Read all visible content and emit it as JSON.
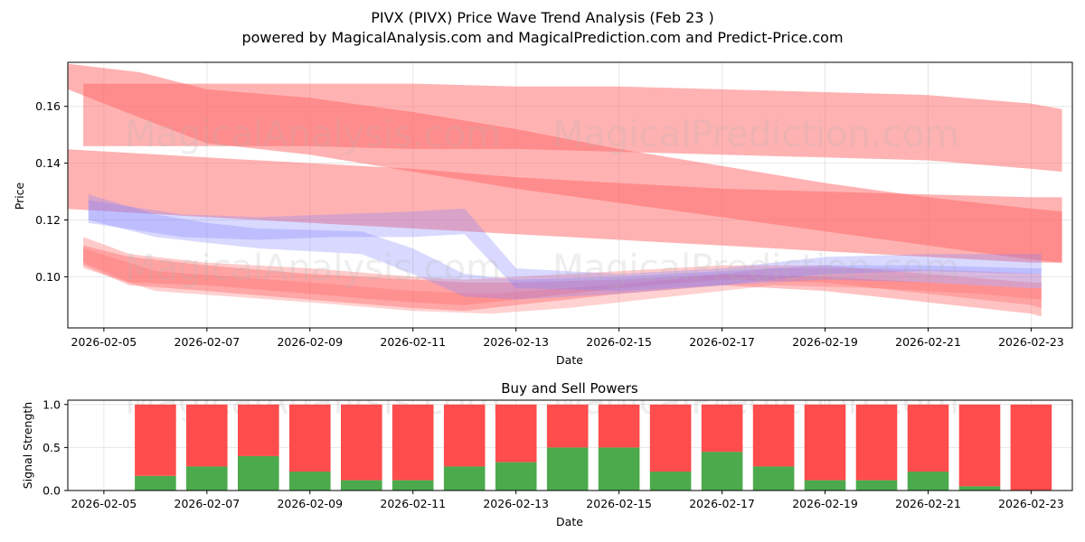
{
  "title": "PIVX (PIVX) Price Wave Trend Analysis (Feb 23 )",
  "subtitle": "powered by MagicalAnalysis.com and MagicalPrediction.com and Predict-Price.com",
  "watermarks": [
    "MagicalAnalysis.com",
    "MagicalPrediction.com"
  ],
  "chart_data": [
    {
      "type": "area",
      "title": "",
      "xlabel": "Date",
      "ylabel": "Price",
      "xlim": [
        "2026-02-04.3",
        "2026-02-23.8"
      ],
      "ylim": [
        0.082,
        0.1755
      ],
      "x_ticks": [
        "2026-02-05",
        "2026-02-07",
        "2026-02-09",
        "2026-02-11",
        "2026-02-13",
        "2026-02-15",
        "2026-02-17",
        "2026-02-19",
        "2026-02-21",
        "2026-02-23"
      ],
      "y_ticks": [
        0.1,
        0.12,
        0.14,
        0.16
      ],
      "y_tick_labels": [
        "0.10",
        "0.12",
        "0.14",
        "0.16"
      ],
      "grid": true,
      "colors": {
        "red_band": "#ff6666",
        "blue_band": "#8080ff"
      },
      "series": [
        {
          "name": "red-wave-1",
          "color": "red",
          "opacity": 0.5,
          "x": [
            4.3,
            5.7,
            7.0,
            9.0,
            11.0,
            13.0,
            15.0,
            17.0,
            19.0,
            21.0,
            23.0,
            23.6
          ],
          "upper": [
            0.175,
            0.172,
            0.166,
            0.163,
            0.158,
            0.152,
            0.145,
            0.139,
            0.133,
            0.128,
            0.124,
            0.123
          ],
          "lower": [
            0.166,
            0.156,
            0.147,
            0.143,
            0.137,
            0.131,
            0.126,
            0.121,
            0.116,
            0.111,
            0.106,
            0.105
          ]
        },
        {
          "name": "red-wave-2",
          "color": "red",
          "opacity": 0.5,
          "x": [
            4.6,
            7.0,
            9.0,
            11.0,
            13.0,
            15.0,
            17.0,
            19.0,
            21.0,
            23.0,
            23.6
          ],
          "upper": [
            0.168,
            0.168,
            0.168,
            0.168,
            0.167,
            0.167,
            0.166,
            0.165,
            0.164,
            0.161,
            0.159
          ],
          "lower": [
            0.146,
            0.146,
            0.146,
            0.145,
            0.145,
            0.144,
            0.143,
            0.142,
            0.141,
            0.138,
            0.137
          ]
        },
        {
          "name": "red-wave-3",
          "color": "red",
          "opacity": 0.5,
          "x": [
            4.2,
            7.0,
            9.0,
            11.0,
            13.0,
            15.0,
            17.0,
            19.0,
            21.0,
            23.0,
            23.6
          ],
          "upper": [
            0.145,
            0.142,
            0.14,
            0.138,
            0.135,
            0.133,
            0.131,
            0.13,
            0.129,
            0.128,
            0.128
          ],
          "lower": [
            0.124,
            0.121,
            0.119,
            0.117,
            0.115,
            0.113,
            0.111,
            0.109,
            0.107,
            0.105,
            0.105
          ]
        },
        {
          "name": "red-wave-4",
          "color": "red",
          "opacity": 0.4,
          "x": [
            4.6,
            5.5,
            7.0,
            9.0,
            11.0,
            12.0,
            13.0,
            15.0,
            17.0,
            19.0,
            21.0,
            23.0,
            23.2
          ],
          "upper": [
            0.111,
            0.107,
            0.104,
            0.101,
            0.099,
            0.098,
            0.098,
            0.099,
            0.101,
            0.1,
            0.098,
            0.096,
            0.096
          ],
          "lower": [
            0.104,
            0.097,
            0.095,
            0.092,
            0.089,
            0.088,
            0.09,
            0.094,
            0.097,
            0.095,
            0.091,
            0.087,
            0.086
          ]
        },
        {
          "name": "red-wave-5",
          "color": "red",
          "opacity": 0.35,
          "x": [
            4.6,
            5.5,
            7.0,
            9.0,
            11.0,
            12.0,
            13.0,
            15.0,
            17.0,
            19.0,
            21.0,
            23.0,
            23.2
          ],
          "upper": [
            0.114,
            0.108,
            0.105,
            0.103,
            0.1,
            0.099,
            0.1,
            0.102,
            0.104,
            0.104,
            0.101,
            0.098,
            0.098
          ],
          "lower": [
            0.105,
            0.098,
            0.097,
            0.094,
            0.091,
            0.09,
            0.092,
            0.096,
            0.099,
            0.098,
            0.094,
            0.09,
            0.089
          ]
        },
        {
          "name": "red-wave-6",
          "color": "red",
          "opacity": 0.3,
          "x": [
            4.6,
            6.0,
            7.5,
            9.0,
            11.0,
            12.5,
            14.0,
            16.0,
            18.0,
            20.0,
            22.0,
            23.2
          ],
          "upper": [
            0.11,
            0.102,
            0.1,
            0.098,
            0.095,
            0.094,
            0.096,
            0.099,
            0.103,
            0.103,
            0.102,
            0.101
          ],
          "lower": [
            0.103,
            0.095,
            0.093,
            0.091,
            0.088,
            0.087,
            0.089,
            0.093,
            0.097,
            0.096,
            0.094,
            0.092
          ]
        },
        {
          "name": "blue-wave-1",
          "color": "blue",
          "opacity": 0.3,
          "x": [
            4.7,
            6.0,
            7.0,
            8.0,
            10.0,
            11.0,
            12.0,
            13.0,
            15.0,
            17.0,
            19.0,
            21.0,
            23.0,
            23.2
          ],
          "upper": [
            0.129,
            0.122,
            0.119,
            0.117,
            0.116,
            0.11,
            0.101,
            0.099,
            0.1,
            0.102,
            0.104,
            0.104,
            0.103,
            0.103
          ],
          "lower": [
            0.12,
            0.114,
            0.112,
            0.11,
            0.108,
            0.101,
            0.093,
            0.092,
            0.094,
            0.097,
            0.099,
            0.098,
            0.096,
            0.096
          ]
        },
        {
          "name": "blue-wave-2",
          "color": "blue",
          "opacity": 0.3,
          "x": [
            4.7,
            6.5,
            8.0,
            9.5,
            11.0,
            12.0,
            13.0,
            15.0,
            17.0,
            19.0,
            21.0,
            23.0,
            23.2
          ],
          "upper": [
            0.127,
            0.122,
            0.121,
            0.122,
            0.123,
            0.124,
            0.103,
            0.101,
            0.103,
            0.107,
            0.108,
            0.108,
            0.108
          ],
          "lower": [
            0.119,
            0.114,
            0.113,
            0.114,
            0.114,
            0.115,
            0.096,
            0.095,
            0.097,
            0.101,
            0.102,
            0.101,
            0.101
          ]
        }
      ]
    },
    {
      "type": "bar",
      "title": "Buy and Sell Powers",
      "xlabel": "Date",
      "ylabel": "Signal Strength",
      "xlim": [
        "2026-02-04.3",
        "2026-02-23.8"
      ],
      "ylim": [
        0,
        1.05
      ],
      "x_ticks": [
        "2026-02-05",
        "2026-02-07",
        "2026-02-09",
        "2026-02-11",
        "2026-02-13",
        "2026-02-15",
        "2026-02-17",
        "2026-02-19",
        "2026-02-21",
        "2026-02-23"
      ],
      "y_ticks": [
        0.0,
        0.5,
        1.0
      ],
      "y_tick_labels": [
        "0.0",
        "0.5",
        "1.0"
      ],
      "grid": true,
      "colors": {
        "buy": "#4caa4c",
        "sell": "#ff4c4c"
      },
      "categories": [
        "2026-02-06",
        "2026-02-07",
        "2026-02-08",
        "2026-02-09",
        "2026-02-10",
        "2026-02-11",
        "2026-02-12",
        "2026-02-13",
        "2026-02-14",
        "2026-02-15",
        "2026-02-16",
        "2026-02-17",
        "2026-02-18",
        "2026-02-19",
        "2026-02-20",
        "2026-02-21",
        "2026-02-22",
        "2026-02-23"
      ],
      "series": [
        {
          "name": "Buy",
          "values": [
            0.17,
            0.28,
            0.4,
            0.22,
            0.12,
            0.12,
            0.28,
            0.33,
            0.5,
            0.5,
            0.22,
            0.45,
            0.28,
            0.12,
            0.12,
            0.22,
            0.05,
            0.0
          ]
        },
        {
          "name": "Sell",
          "values": [
            0.83,
            0.72,
            0.6,
            0.78,
            0.88,
            0.88,
            0.72,
            0.67,
            0.5,
            0.5,
            0.78,
            0.55,
            0.72,
            0.88,
            0.88,
            0.78,
            0.95,
            1.0
          ]
        }
      ]
    }
  ]
}
